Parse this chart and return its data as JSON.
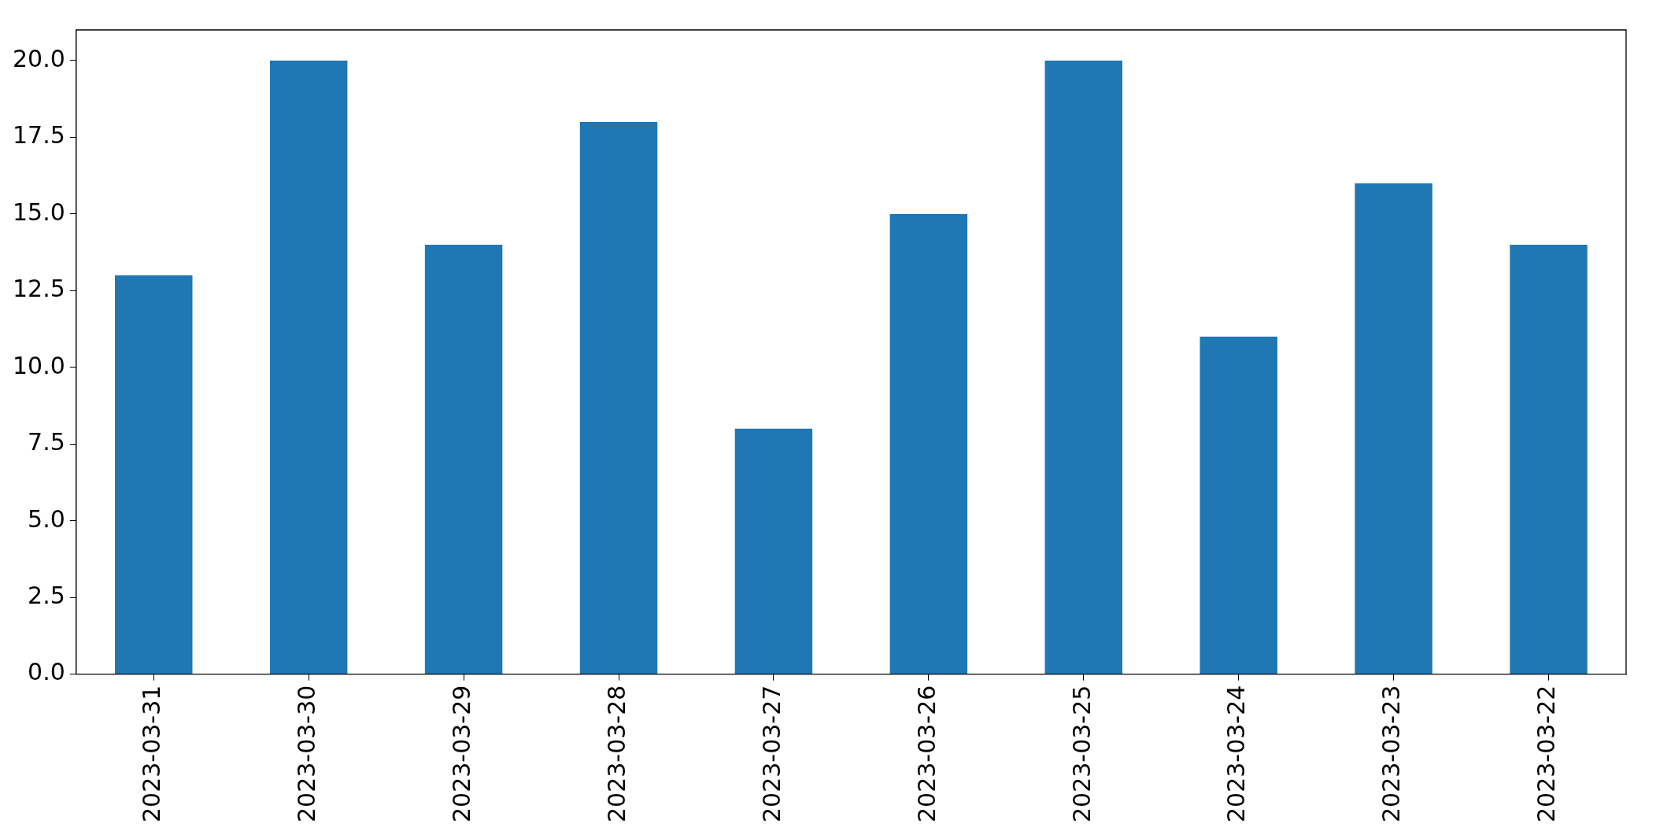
{
  "chart_data": {
    "type": "bar",
    "categories": [
      "2023-03-31",
      "2023-03-30",
      "2023-03-29",
      "2023-03-28",
      "2023-03-27",
      "2023-03-26",
      "2023-03-25",
      "2023-03-24",
      "2023-03-23",
      "2023-03-22"
    ],
    "values": [
      13,
      20,
      14,
      18,
      8,
      15,
      20,
      11,
      16,
      14
    ],
    "color": "#1f77b4",
    "ylim": [
      0,
      21
    ],
    "yticks": [
      {
        "value": 0,
        "label": "0.0"
      },
      {
        "value": 2.5,
        "label": "2.5"
      },
      {
        "value": 5,
        "label": "5.0"
      },
      {
        "value": 7.5,
        "label": "7.5"
      },
      {
        "value": 10,
        "label": "10.0"
      },
      {
        "value": 12.5,
        "label": "12.5"
      },
      {
        "value": 15,
        "label": "15.0"
      },
      {
        "value": 17.5,
        "label": "17.5"
      },
      {
        "value": 20,
        "label": "20.0"
      }
    ],
    "grid": false,
    "legend": false
  }
}
